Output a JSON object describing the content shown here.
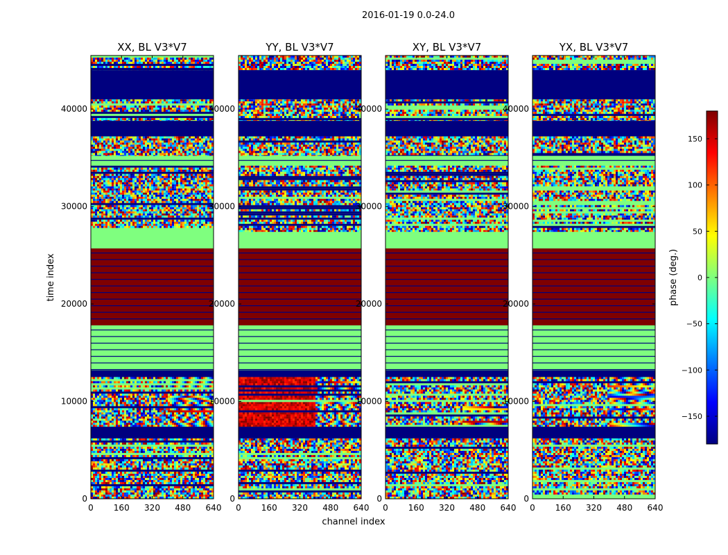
{
  "figure": {
    "suptitle": "2016-01-19 0.0-24.0"
  },
  "chart_data": {
    "type": "heatmap",
    "xlabel": "channel index",
    "ylabel": "time index",
    "xlim": [
      0,
      640
    ],
    "ylim": [
      0,
      45500
    ],
    "xticks": [
      "0",
      "160",
      "320",
      "480",
      "640"
    ],
    "yticks": [
      "0",
      "10000",
      "20000",
      "30000",
      "40000"
    ],
    "ytick_values": [
      0,
      10000,
      20000,
      30000,
      40000
    ],
    "xtick_values": [
      0,
      160,
      320,
      480,
      640
    ],
    "colormap": "jet",
    "panels": [
      {
        "title": "XX, BL V3*V7",
        "polarization": "XX"
      },
      {
        "title": "YY, BL V3*V7",
        "polarization": "YY"
      },
      {
        "title": "XY, BL V3*V7",
        "polarization": "XY"
      },
      {
        "title": "YX, BL V3*V7",
        "polarization": "YX"
      }
    ],
    "time_bands": [
      {
        "start": 0,
        "end": 6200,
        "pattern": "noisy"
      },
      {
        "start": 6200,
        "end": 7400,
        "pattern": "value",
        "phase": -180
      },
      {
        "start": 7400,
        "end": 12500,
        "pattern": "noisy-fringe"
      },
      {
        "start": 12500,
        "end": 13200,
        "pattern": "value",
        "phase": -180
      },
      {
        "start": 13200,
        "end": 17800,
        "pattern": "value-lined",
        "phase": 0
      },
      {
        "start": 17800,
        "end": 25700,
        "pattern": "value-lined",
        "phase": 180
      },
      {
        "start": 25700,
        "end": 27400,
        "pattern": "value",
        "phase": 0
      },
      {
        "start": 27400,
        "end": 34200,
        "pattern": "noisy"
      },
      {
        "start": 34200,
        "end": 35200,
        "pattern": "value-lined",
        "phase": 0
      },
      {
        "start": 35200,
        "end": 37200,
        "pattern": "noisy"
      },
      {
        "start": 37200,
        "end": 38800,
        "pattern": "value",
        "phase": -180
      },
      {
        "start": 38800,
        "end": 41000,
        "pattern": "noisy"
      },
      {
        "start": 41000,
        "end": 44000,
        "pattern": "value",
        "phase": -180
      },
      {
        "start": 44000,
        "end": 45500,
        "pattern": "noisy"
      }
    ],
    "colorbar": {
      "label": "phase (deg.)",
      "vmin": -180,
      "vmax": 180,
      "ticks": [
        "150",
        "100",
        "50",
        "0",
        "−50",
        "−100",
        "−150"
      ],
      "tick_values": [
        150,
        100,
        50,
        0,
        -50,
        -100,
        -150
      ],
      "colors": [
        "#00007f",
        "#0000ff",
        "#007fff",
        "#00ffff",
        "#7fff7f",
        "#ffff00",
        "#ff7f00",
        "#ff0000",
        "#7f0000"
      ]
    }
  }
}
